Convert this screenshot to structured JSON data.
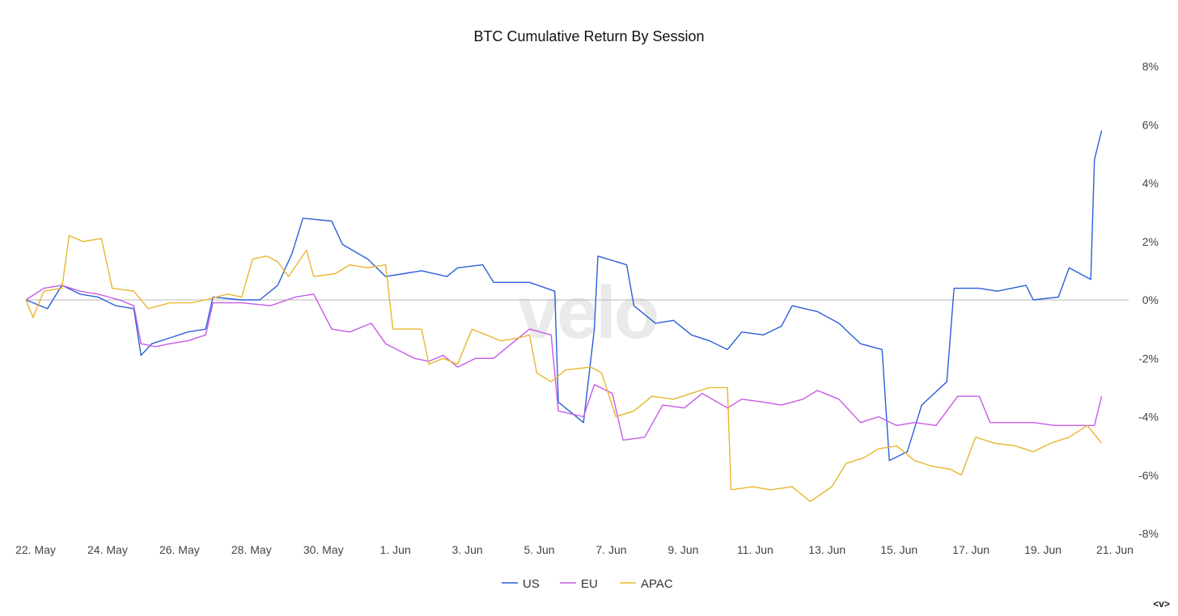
{
  "chart_data": {
    "type": "line",
    "title": "BTC Cumulative Return By Session",
    "watermark": "velo",
    "xlabel": "",
    "ylabel": "",
    "ylim": [
      -8,
      8
    ],
    "y_ticks": [
      "8%",
      "6%",
      "4%",
      "2%",
      "0%",
      "-2%",
      "-4%",
      "-6%",
      "-8%"
    ],
    "x_ticks": [
      "22. May",
      "24. May",
      "26. May",
      "28. May",
      "30. May",
      "1. Jun",
      "3. Jun",
      "5. Jun",
      "7. Jun",
      "9. Jun",
      "11. Jun",
      "13. Jun",
      "15. Jun",
      "17. Jun",
      "19. Jun",
      "21. Jun"
    ],
    "zero_line": true,
    "grid": false,
    "legend_position": "bottom-center",
    "series": [
      {
        "name": "US",
        "color": "#2b5fd9",
        "points": [
          [
            "May 22",
            0.0
          ],
          [
            "May 22.6",
            -0.3
          ],
          [
            "May 23",
            0.5
          ],
          [
            "May 23.5",
            0.2
          ],
          [
            "May 24",
            0.1
          ],
          [
            "May 24.5",
            -0.2
          ],
          [
            "May 25",
            -0.3
          ],
          [
            "May 25.2",
            -1.9
          ],
          [
            "May 25.5",
            -1.5
          ],
          [
            "May 26",
            -1.3
          ],
          [
            "May 26.5",
            -1.1
          ],
          [
            "May 27",
            -1.0
          ],
          [
            "May 27.2",
            0.1
          ],
          [
            "May 28",
            0.0
          ],
          [
            "May 28.5",
            0.0
          ],
          [
            "May 29",
            0.5
          ],
          [
            "May 29.4",
            1.6
          ],
          [
            "May 29.7",
            2.8
          ],
          [
            "May 30.5",
            2.7
          ],
          [
            "May 30.8",
            1.9
          ],
          [
            "May 31.5",
            1.4
          ],
          [
            "Jun 1",
            0.8
          ],
          [
            "Jun 1.5",
            0.9
          ],
          [
            "Jun 2",
            1.0
          ],
          [
            "Jun 2.7",
            0.8
          ],
          [
            "Jun 3",
            1.1
          ],
          [
            "Jun 3.7",
            1.2
          ],
          [
            "Jun 4",
            0.6
          ],
          [
            "Jun 4.5",
            0.6
          ],
          [
            "Jun 5",
            0.6
          ],
          [
            "Jun 5.7",
            0.3
          ],
          [
            "Jun 5.8",
            -3.5
          ],
          [
            "Jun 6.5",
            -4.2
          ],
          [
            "Jun 6.8",
            -1.0
          ],
          [
            "Jun 6.9",
            1.5
          ],
          [
            "Jun 7.7",
            1.2
          ],
          [
            "Jun 7.9",
            -0.2
          ],
          [
            "Jun 8.5",
            -0.8
          ],
          [
            "Jun 9",
            -0.7
          ],
          [
            "Jun 9.5",
            -1.2
          ],
          [
            "Jun 10",
            -1.4
          ],
          [
            "Jun 10.5",
            -1.7
          ],
          [
            "Jun 10.9",
            -1.1
          ],
          [
            "Jun 11.5",
            -1.2
          ],
          [
            "Jun 12",
            -0.9
          ],
          [
            "Jun 12.3",
            -0.2
          ],
          [
            "Jun 13",
            -0.4
          ],
          [
            "Jun 13.6",
            -0.8
          ],
          [
            "Jun 14.2",
            -1.5
          ],
          [
            "Jun 14.8",
            -1.7
          ],
          [
            "Jun 15",
            -5.5
          ],
          [
            "Jun 15.5",
            -5.2
          ],
          [
            "Jun 15.9",
            -3.6
          ],
          [
            "Jun 16.6",
            -2.8
          ],
          [
            "Jun 16.8",
            0.4
          ],
          [
            "Jun 17.5",
            0.4
          ],
          [
            "Jun 18",
            0.3
          ],
          [
            "Jun 18.8",
            0.5
          ],
          [
            "Jun 19",
            0.0
          ],
          [
            "Jun 19.7",
            0.1
          ],
          [
            "Jun 20",
            1.1
          ],
          [
            "Jun 20.6",
            0.7
          ],
          [
            "Jun 20.7",
            4.8
          ],
          [
            "Jun 20.9",
            5.8
          ]
        ]
      },
      {
        "name": "EU",
        "color": "#c65be6",
        "points": [
          [
            "May 22",
            0.0
          ],
          [
            "May 22.5",
            0.4
          ],
          [
            "May 23",
            0.5
          ],
          [
            "May 23.5",
            0.3
          ],
          [
            "May 24",
            0.2
          ],
          [
            "May 24.6",
            0.0
          ],
          [
            "May 25",
            -0.2
          ],
          [
            "May 25.2",
            -1.5
          ],
          [
            "May 25.6",
            -1.6
          ],
          [
            "May 26",
            -1.5
          ],
          [
            "May 26.5",
            -1.4
          ],
          [
            "May 27",
            -1.2
          ],
          [
            "May 27.2",
            -0.1
          ],
          [
            "May 28",
            -0.1
          ],
          [
            "May 28.8",
            -0.2
          ],
          [
            "May 29.5",
            0.1
          ],
          [
            "May 30",
            0.2
          ],
          [
            "May 30.5",
            -1.0
          ],
          [
            "May 31",
            -1.1
          ],
          [
            "May 31.6",
            -0.8
          ],
          [
            "Jun 1",
            -1.5
          ],
          [
            "Jun 1.8",
            -2.0
          ],
          [
            "Jun 2.2",
            -2.1
          ],
          [
            "Jun 2.6",
            -1.9
          ],
          [
            "Jun 3",
            -2.3
          ],
          [
            "Jun 3.5",
            -2.0
          ],
          [
            "Jun 4",
            -2.0
          ],
          [
            "Jun 4.5",
            -1.5
          ],
          [
            "Jun 5",
            -1.0
          ],
          [
            "Jun 5.6",
            -1.2
          ],
          [
            "Jun 5.8",
            -3.8
          ],
          [
            "Jun 6.5",
            -4.0
          ],
          [
            "Jun 6.8",
            -2.9
          ],
          [
            "Jun 7.3",
            -3.2
          ],
          [
            "Jun 7.6",
            -4.8
          ],
          [
            "Jun 8.2",
            -4.7
          ],
          [
            "Jun 8.7",
            -3.6
          ],
          [
            "Jun 9.3",
            -3.7
          ],
          [
            "Jun 9.8",
            -3.2
          ],
          [
            "Jun 10.5",
            -3.7
          ],
          [
            "Jun 10.9",
            -3.4
          ],
          [
            "Jun 11.5",
            -3.5
          ],
          [
            "Jun 12",
            -3.6
          ],
          [
            "Jun 12.6",
            -3.4
          ],
          [
            "Jun 13",
            -3.1
          ],
          [
            "Jun 13.6",
            -3.4
          ],
          [
            "Jun 14.2",
            -4.2
          ],
          [
            "Jun 14.7",
            -4.0
          ],
          [
            "Jun 15.2",
            -4.3
          ],
          [
            "Jun 15.7",
            -4.2
          ],
          [
            "Jun 16.3",
            -4.3
          ],
          [
            "Jun 16.9",
            -3.3
          ],
          [
            "Jun 17.5",
            -3.3
          ],
          [
            "Jun 17.8",
            -4.2
          ],
          [
            "Jun 18.5",
            -4.2
          ],
          [
            "Jun 19",
            -4.2
          ],
          [
            "Jun 19.6",
            -4.3
          ],
          [
            "Jun 20.3",
            -4.3
          ],
          [
            "Jun 20.7",
            -4.3
          ],
          [
            "Jun 20.9",
            -3.3
          ]
        ]
      },
      {
        "name": "APAC",
        "color": "#eab530",
        "points": [
          [
            "May 22",
            0.0
          ],
          [
            "May 22.2",
            -0.6
          ],
          [
            "May 22.5",
            0.3
          ],
          [
            "May 23",
            0.4
          ],
          [
            "May 23.2",
            2.2
          ],
          [
            "May 23.6",
            2.0
          ],
          [
            "May 24.1",
            2.1
          ],
          [
            "May 24.4",
            0.4
          ],
          [
            "May 25",
            0.3
          ],
          [
            "May 25.4",
            -0.3
          ],
          [
            "May 26",
            -0.1
          ],
          [
            "May 26.6",
            -0.1
          ],
          [
            "May 27",
            0.0
          ],
          [
            "May 27.6",
            0.2
          ],
          [
            "May 28",
            0.1
          ],
          [
            "May 28.3",
            1.4
          ],
          [
            "May 28.7",
            1.5
          ],
          [
            "May 29",
            1.3
          ],
          [
            "May 29.3",
            0.8
          ],
          [
            "May 29.8",
            1.7
          ],
          [
            "May 30",
            0.8
          ],
          [
            "May 30.6",
            0.9
          ],
          [
            "May 31",
            1.2
          ],
          [
            "May 31.5",
            1.1
          ],
          [
            "Jun 1",
            1.2
          ],
          [
            "Jun 1.2",
            -1.0
          ],
          [
            "Jun 2",
            -1.0
          ],
          [
            "Jun 2.2",
            -2.2
          ],
          [
            "Jun 2.6",
            -2.0
          ],
          [
            "Jun 3",
            -2.2
          ],
          [
            "Jun 3.4",
            -1.0
          ],
          [
            "Jun 3.8",
            -1.2
          ],
          [
            "Jun 4.2",
            -1.4
          ],
          [
            "Jun 4.7",
            -1.3
          ],
          [
            "Jun 5",
            -1.2
          ],
          [
            "Jun 5.2",
            -2.5
          ],
          [
            "Jun 5.6",
            -2.8
          ],
          [
            "Jun 6",
            -2.4
          ],
          [
            "Jun 6.7",
            -2.3
          ],
          [
            "Jun 7",
            -2.5
          ],
          [
            "Jun 7.4",
            -4.0
          ],
          [
            "Jun 7.9",
            -3.8
          ],
          [
            "Jun 8.4",
            -3.3
          ],
          [
            "Jun 9",
            -3.4
          ],
          [
            "Jun 9.5",
            -3.2
          ],
          [
            "Jun 10",
            -3.0
          ],
          [
            "Jun 10.5",
            -3.0
          ],
          [
            "Jun 10.6",
            -6.5
          ],
          [
            "Jun 11.2",
            -6.4
          ],
          [
            "Jun 11.7",
            -6.5
          ],
          [
            "Jun 12.3",
            -6.4
          ],
          [
            "Jun 12.8",
            -6.9
          ],
          [
            "Jun 13.4",
            -6.4
          ],
          [
            "Jun 13.8",
            -5.6
          ],
          [
            "Jun 14.3",
            -5.4
          ],
          [
            "Jun 14.7",
            -5.1
          ],
          [
            "Jun 15.2",
            -5.0
          ],
          [
            "Jun 15.7",
            -5.5
          ],
          [
            "Jun 16.2",
            -5.7
          ],
          [
            "Jun 16.7",
            -5.8
          ],
          [
            "Jun 17",
            -6.0
          ],
          [
            "Jun 17.4",
            -4.7
          ],
          [
            "Jun 17.9",
            -4.9
          ],
          [
            "Jun 18.5",
            -5.0
          ],
          [
            "Jun 19",
            -5.2
          ],
          [
            "Jun 19.5",
            -4.9
          ],
          [
            "Jun 20",
            -4.7
          ],
          [
            "Jun 20.5",
            -4.3
          ],
          [
            "Jun 20.9",
            -4.9
          ]
        ]
      }
    ]
  },
  "corner_label": "<v>"
}
